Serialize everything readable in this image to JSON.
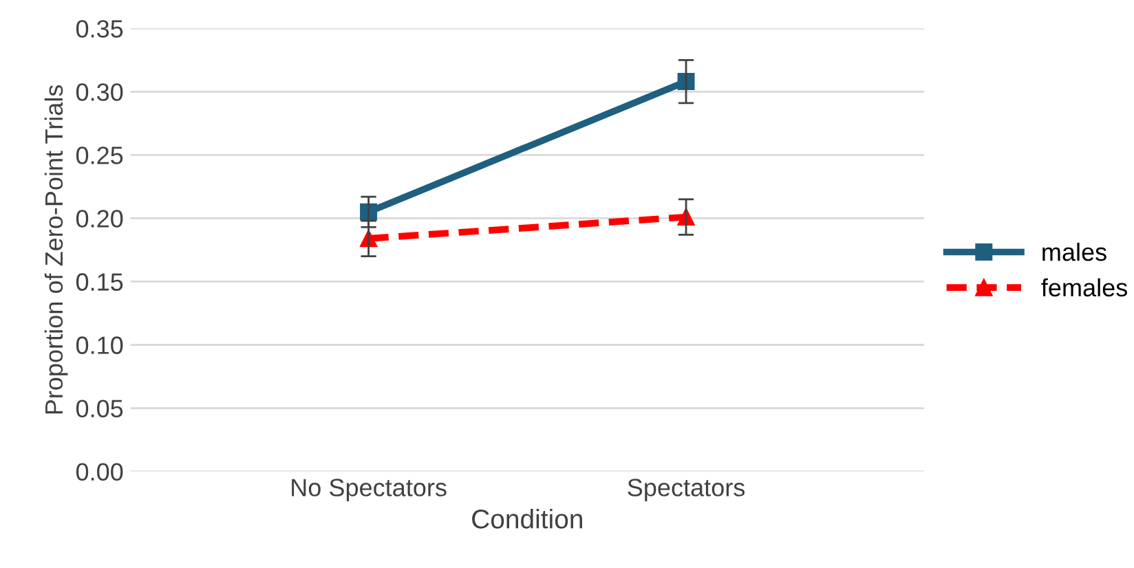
{
  "chart_data": {
    "type": "line",
    "xlabel": "Condition",
    "ylabel": "Proportion of Zero-Point Trials",
    "categories": [
      "No Spectators",
      "Spectators"
    ],
    "series": [
      {
        "name": "males",
        "color": "#1f5f7f",
        "values": [
          0.205,
          0.308
        ],
        "errors": [
          0.012,
          0.017
        ],
        "marker": "square",
        "line_style": "solid"
      },
      {
        "name": "females",
        "color": "#ff0000",
        "values": [
          0.184,
          0.201
        ],
        "errors": [
          0.014,
          0.014
        ],
        "marker": "triangle",
        "line_style": "dashed"
      }
    ],
    "ylim": [
      0,
      0.35
    ],
    "yticks": [
      {
        "value": 0,
        "label": "0.00"
      },
      {
        "value": 0.05,
        "label": "0.05"
      },
      {
        "value": 0.1,
        "label": "0.10"
      },
      {
        "value": 0.15,
        "label": "0.15"
      },
      {
        "value": 0.2,
        "label": "0.20"
      },
      {
        "value": 0.25,
        "label": "0.25"
      },
      {
        "value": 0.3,
        "label": "0.30"
      },
      {
        "value": 0.35,
        "label": "0.35"
      }
    ],
    "grid": "y",
    "legend": "right"
  }
}
